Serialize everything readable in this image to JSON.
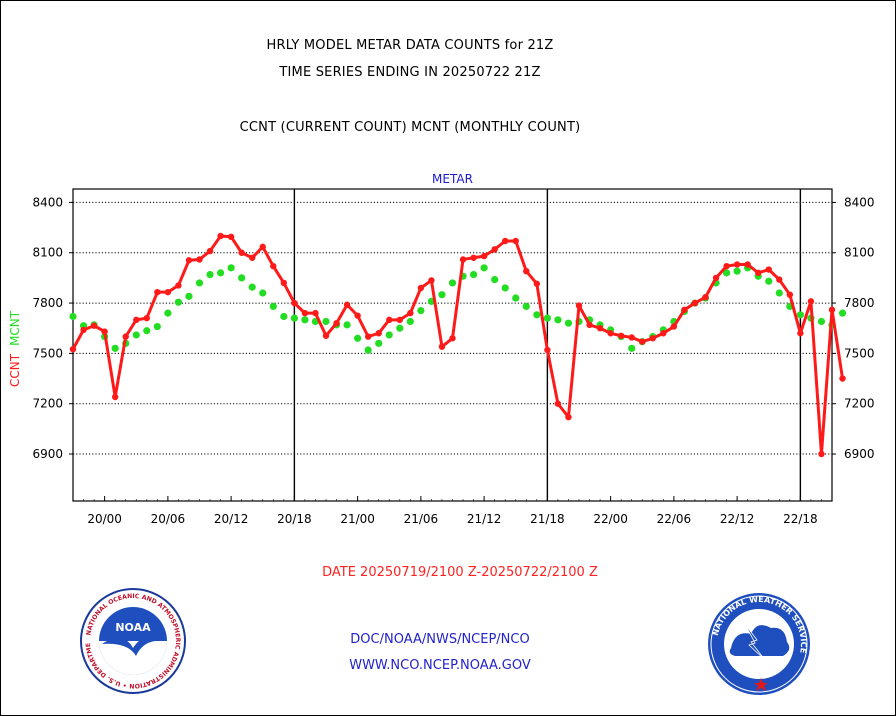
{
  "header": {
    "line1": "HRLY MODEL METAR DATA COUNTS for 21Z",
    "line2": "TIME SERIES ENDING IN 20250722 21Z",
    "line3": "CCNT (CURRENT COUNT) MCNT (MONTHLY COUNT)"
  },
  "footer": {
    "date_range": "DATE 20250719/2100 Z-20250722/2100 Z",
    "org_path": "DOC/NOAA/NWS/NCEP/NCO",
    "website": "WWW.NCO.NCEP.NOAA.GOV"
  },
  "logos": {
    "noaa_text": "NOAA",
    "noaa_ring": "NATIONAL OCEANIC AND ATMOSPHERIC ADMINISTRATION • U.S. DEPARTMENT OF COMMERCE •",
    "nws_ring": "NATIONAL WEATHER SERVICE"
  },
  "colors": {
    "ccnt": "#ff1a1a",
    "mcnt": "#22dd22",
    "title_blue": "#1a1acc",
    "date_red": "#ff2222",
    "footer_blue": "#2222cc"
  },
  "chart_data": {
    "type": "line",
    "title": "METAR",
    "ylabel_parts": [
      {
        "text": "CCNT",
        "color": "#ff1a1a"
      },
      {
        "text": "MCNT",
        "color": "#22dd22"
      }
    ],
    "x_unit": "hours",
    "xlim": [
      0,
      72
    ],
    "ylim": [
      6620,
      8480
    ],
    "yticks": [
      6900,
      7200,
      7500,
      7800,
      8100,
      8400
    ],
    "xticks": [
      {
        "x": 3,
        "label": "20/00"
      },
      {
        "x": 9,
        "label": "20/06"
      },
      {
        "x": 15,
        "label": "20/12"
      },
      {
        "x": 21,
        "label": "20/18"
      },
      {
        "x": 27,
        "label": "21/00"
      },
      {
        "x": 33,
        "label": "21/06"
      },
      {
        "x": 39,
        "label": "21/12"
      },
      {
        "x": 45,
        "label": "21/18"
      },
      {
        "x": 51,
        "label": "22/00"
      },
      {
        "x": 57,
        "label": "22/06"
      },
      {
        "x": 63,
        "label": "22/12"
      },
      {
        "x": 69,
        "label": "22/18"
      }
    ],
    "day_boundaries": [
      21,
      45,
      69
    ],
    "grid": true,
    "series": [
      {
        "name": "CCNT",
        "color": "#ff1a1a",
        "values": [
          7525,
          7640,
          7665,
          7630,
          7240,
          7600,
          7700,
          7710,
          7865,
          7865,
          7905,
          8055,
          8060,
          8110,
          8200,
          8195,
          8100,
          8070,
          8135,
          8020,
          7920,
          7800,
          7740,
          7740,
          7605,
          7680,
          7790,
          7725,
          7600,
          7620,
          7700,
          7700,
          7740,
          7890,
          7935,
          7540,
          7590,
          8060,
          8070,
          8080,
          8120,
          8170,
          8170,
          7990,
          7915,
          7520,
          7200,
          7120,
          7785,
          7670,
          7650,
          7620,
          7605,
          7595,
          7570,
          7590,
          7620,
          7660,
          7760,
          7800,
          7835,
          7950,
          8020,
          8030,
          8030,
          7980,
          8000,
          7940,
          7850,
          7620,
          7810,
          6900,
          7760,
          7350
        ]
      },
      {
        "name": "MCNT",
        "color": "#22dd22",
        "values": [
          7720,
          7665,
          7670,
          7600,
          7530,
          7560,
          7610,
          7635,
          7660,
          7740,
          7805,
          7840,
          7920,
          7970,
          7980,
          8010,
          7950,
          7895,
          7860,
          7780,
          7720,
          7710,
          7700,
          7690,
          7690,
          7670,
          7670,
          7590,
          7520,
          7560,
          7610,
          7650,
          7690,
          7755,
          7810,
          7850,
          7920,
          7960,
          7970,
          8010,
          7940,
          7890,
          7830,
          7780,
          7730,
          7710,
          7700,
          7680,
          7690,
          7700,
          7670,
          7640,
          7600,
          7530,
          7570,
          7600,
          7640,
          7690,
          7750,
          7800,
          7830,
          7920,
          7980,
          7990,
          8010,
          7960,
          7930,
          7860,
          7780,
          7730,
          7710,
          7690,
          7670,
          7740
        ]
      }
    ]
  }
}
